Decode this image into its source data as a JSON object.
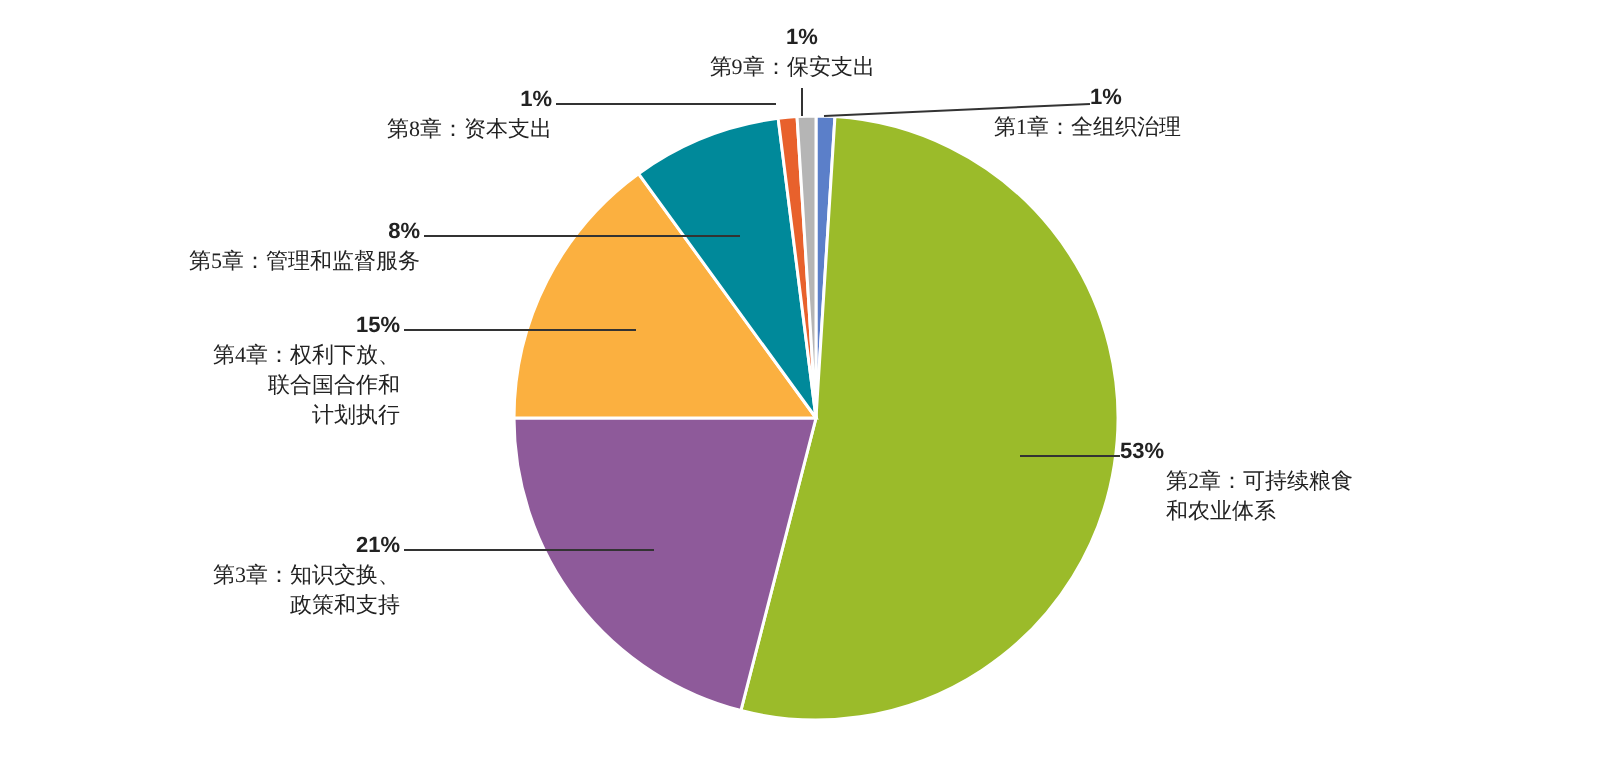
{
  "chart_data": {
    "type": "pie",
    "categories": [
      "第1章：全组织治理",
      "第2章：可持续粮食和农业体系",
      "第3章：知识交换、政策和支持",
      "第4章：权利下放、联合国合作和计划执行",
      "第5章：管理和监督服务",
      "第8章：资本支出",
      "第9章：保安支出"
    ],
    "value_labels": [
      "1%",
      "53%",
      "21%",
      "15%",
      "8%",
      "1%",
      "1%"
    ],
    "values": [
      1,
      53,
      21,
      15,
      8,
      1,
      1
    ],
    "colors": [
      "#5b7fc9",
      "#9bbb2a",
      "#8e5a9a",
      "#fbb040",
      "#00899a",
      "#e8612c",
      "#b5b5b5"
    ]
  }
}
